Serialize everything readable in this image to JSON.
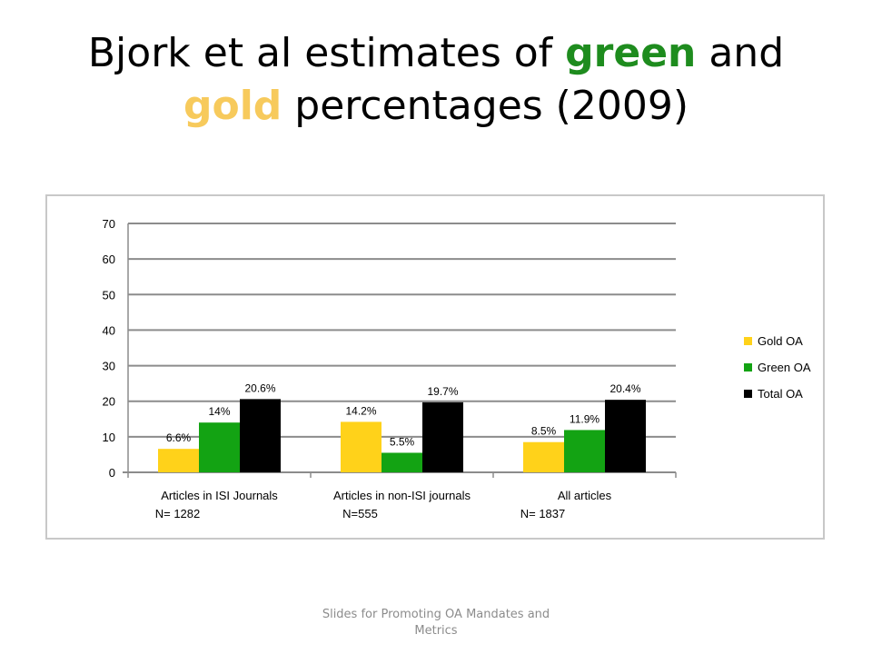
{
  "slide": {
    "title_part1": "Bjork et al estimates of ",
    "title_green": "green",
    "title_and": " and ",
    "title_gold": "gold",
    "title_part2": " percentages (2009)"
  },
  "footer": {
    "text": "Slides for Promoting OA Mandates and Metrics"
  },
  "chart_data": {
    "type": "bar",
    "categories": [
      "Articles in ISI Journals",
      "Articles in non-ISI journals",
      "All articles"
    ],
    "category_sublabels": [
      "N= 1282",
      "N=555",
      "N= 1837"
    ],
    "series": [
      {
        "name": "Gold OA",
        "color": "#ffd21a",
        "values": [
          6.6,
          14.2,
          8.5
        ],
        "labels": [
          "6.6%",
          "14.2%",
          "8.5%"
        ]
      },
      {
        "name": "Green OA",
        "color": "#13a313",
        "values": [
          14,
          5.5,
          11.9
        ],
        "labels": [
          "14%",
          "5.5%",
          "11.9%"
        ]
      },
      {
        "name": "Total OA",
        "color": "#000000",
        "values": [
          20.6,
          19.7,
          20.4
        ],
        "labels": [
          "20.6%",
          "19.7%",
          "20.4%"
        ]
      }
    ],
    "ylim": [
      0,
      70
    ],
    "yticks": [
      0,
      10,
      20,
      30,
      40,
      50,
      60,
      70
    ],
    "grid": true,
    "legend": "right",
    "title": "",
    "xlabel": "",
    "ylabel": ""
  }
}
